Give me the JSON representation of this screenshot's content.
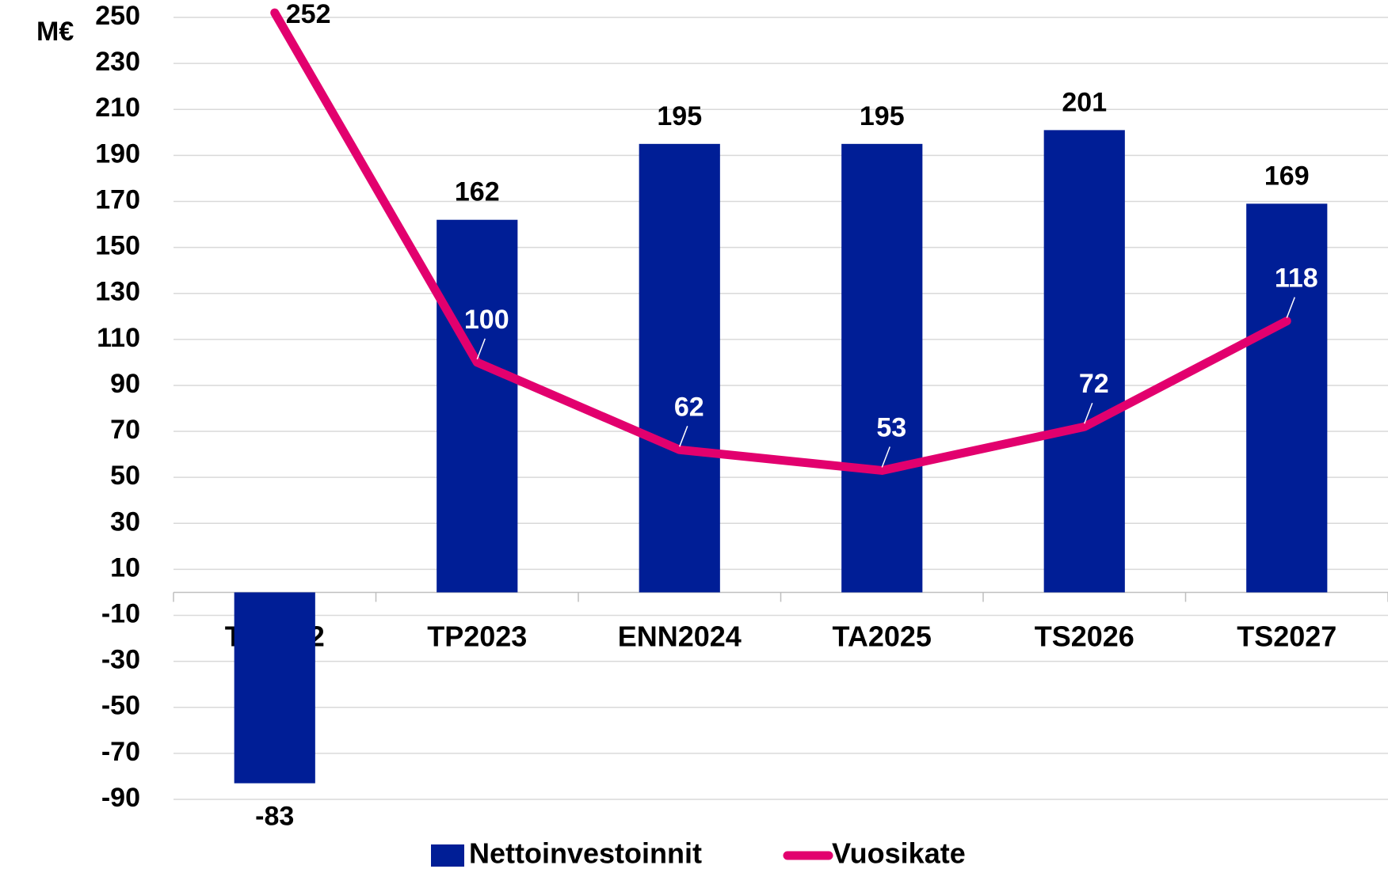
{
  "chart_data": {
    "type": "bar",
    "y_label": "M€",
    "categories": [
      "TP2022",
      "TP2023",
      "ENN2024",
      "TA2025",
      "TS2026",
      "TS2027"
    ],
    "series": [
      {
        "name": "Nettoinvestoinnit",
        "type": "bar",
        "color": "#001e96",
        "values": [
          -83,
          162,
          195,
          195,
          201,
          169
        ]
      },
      {
        "name": "Vuosikate",
        "type": "line",
        "color": "#e2006e",
        "values": [
          252,
          100,
          62,
          53,
          72,
          118
        ]
      }
    ],
    "ylim": [
      -90,
      250
    ],
    "yticks": [
      250,
      230,
      210,
      190,
      170,
      150,
      130,
      110,
      90,
      70,
      50,
      30,
      10,
      -10,
      -30,
      -50,
      -70,
      -90
    ],
    "grid": true
  }
}
